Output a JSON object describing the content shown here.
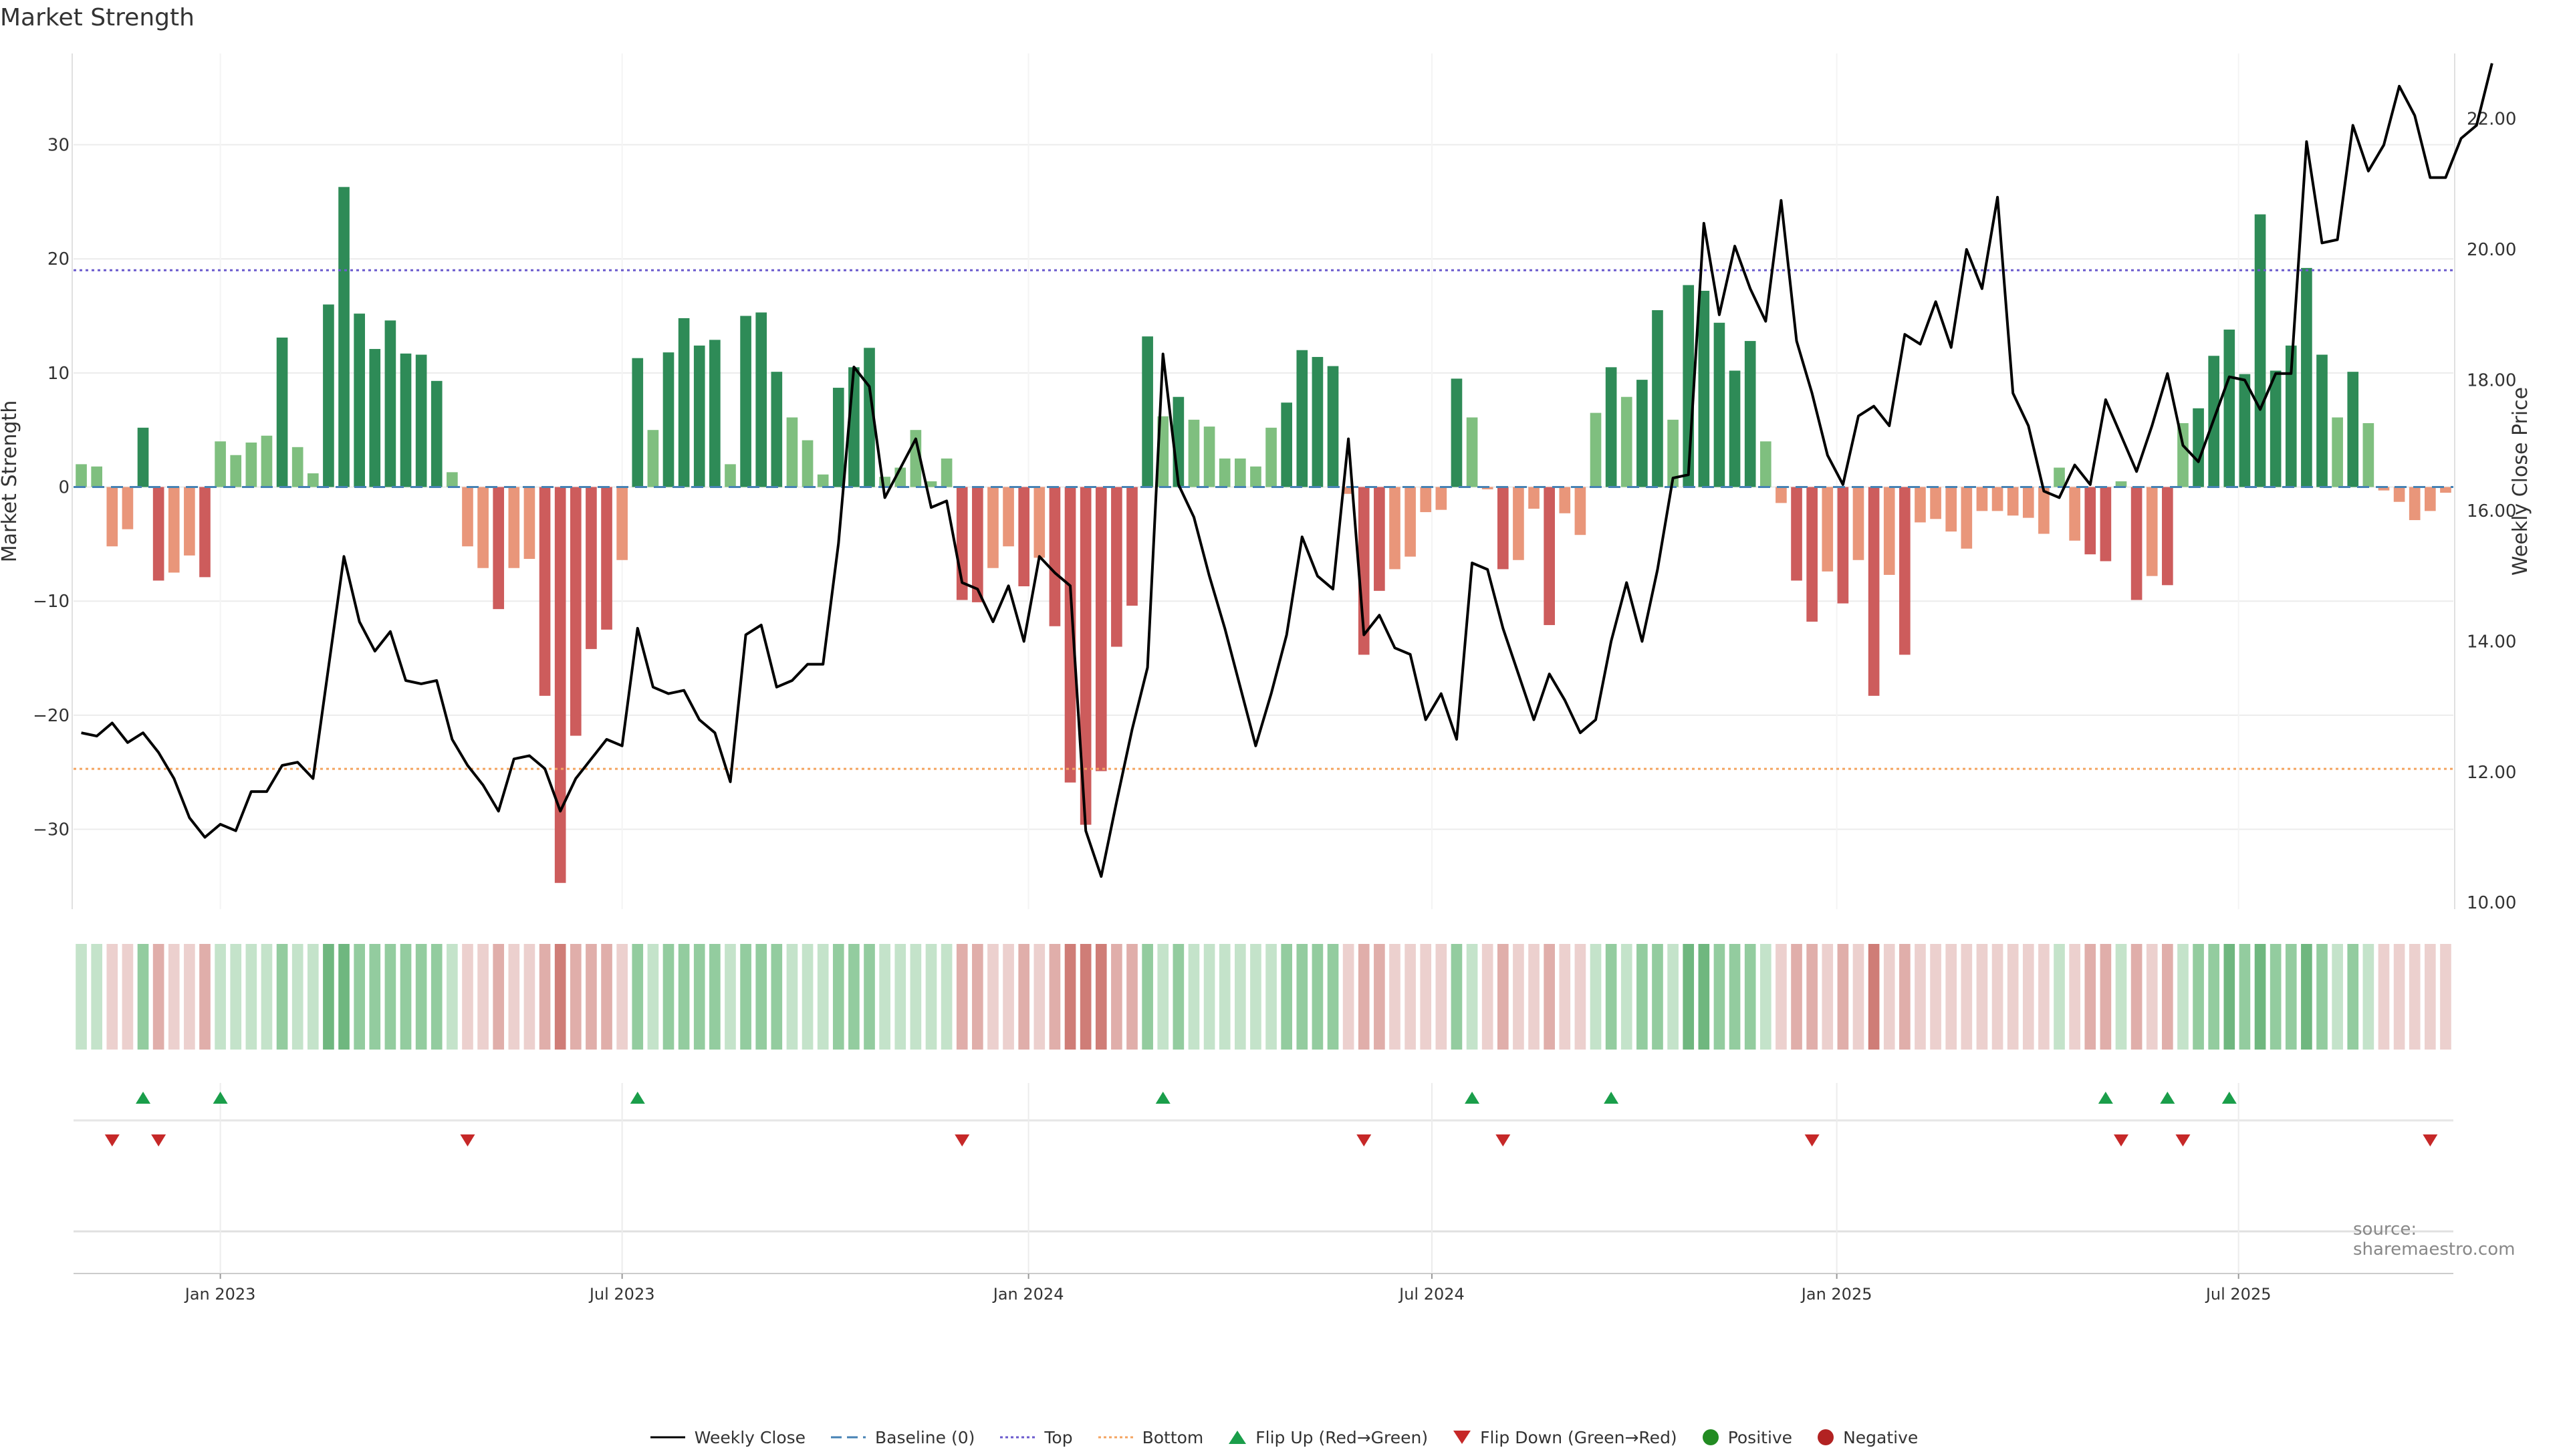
{
  "page": {
    "title": "Market Strength",
    "source": "source: sharemaestro.com"
  },
  "colors": {
    "strong_green": "#2e8b57",
    "light_green": "#7fbf7f",
    "strong_red": "#cd5c5c",
    "light_red": "#e9967a",
    "baseline": "#4682b4",
    "top_line": "#6a5acd",
    "bottom_line": "#f4a460",
    "price_line": "#000000",
    "flip_up": "#1a9e4a",
    "flip_down": "#c62828",
    "positive": "#228b22",
    "negative": "#b22222"
  },
  "legend": [
    {
      "key": "weekly_close",
      "label": "Weekly Close"
    },
    {
      "key": "baseline",
      "label": "Baseline (0)"
    },
    {
      "key": "top",
      "label": "Top"
    },
    {
      "key": "bottom",
      "label": "Bottom"
    },
    {
      "key": "flip_up",
      "label": "Flip Up (Red→Green)"
    },
    {
      "key": "flip_down",
      "label": "Flip Down (Green→Red)"
    },
    {
      "key": "positive",
      "label": "Positive"
    },
    {
      "key": "negative",
      "label": "Negative"
    }
  ],
  "chart_data": {
    "type": "bar",
    "title": "Market Strength",
    "ylabel": "Market Strength",
    "y2label": "Weekly Close Price",
    "ylim": [
      -37,
      38
    ],
    "y2lim": [
      9.9,
      23.0
    ],
    "yticks": [
      -30,
      -20,
      -10,
      0,
      10,
      20,
      30
    ],
    "y2ticks": [
      "10.00",
      "12.00",
      "14.00",
      "16.00",
      "18.00",
      "20.00",
      "22.00"
    ],
    "xtick_labels": [
      "Jan 2023",
      "Jul 2023",
      "Jan 2024",
      "Jul 2024",
      "Jan 2025",
      "Jul 2025"
    ],
    "xtick_weeks": [
      9,
      35,
      61.3,
      87.4,
      113.6,
      139.6
    ],
    "top_level": 19,
    "bottom_level": -24.7,
    "baseline": 0,
    "strength": [
      2,
      1.8,
      -5.2,
      -3.7,
      5.2,
      -8.2,
      -7.5,
      -6,
      -7.9,
      4,
      2.8,
      3.9,
      4.5,
      13.1,
      3.5,
      1.2,
      16,
      26.3,
      15.2,
      12.1,
      14.6,
      11.7,
      11.6,
      9.3,
      1.3,
      -5.2,
      -7.1,
      -10.7,
      -7.1,
      -6.3,
      -18.3,
      -34.7,
      -21.8,
      -14.2,
      -12.5,
      -6.4,
      11.3,
      5,
      11.8,
      14.8,
      12.4,
      12.9,
      2,
      15,
      15.3,
      10.1,
      6.1,
      4.1,
      1.1,
      8.7,
      10.5,
      12.2,
      0.9,
      1.7,
      5,
      0.5,
      2.5,
      -9.9,
      -10.1,
      -7.1,
      -5.2,
      -8.7,
      -6.2,
      -12.2,
      -25.9,
      -29.6,
      -24.9,
      -14,
      -10.4,
      13.2,
      6.2,
      7.9,
      5.9,
      5.3,
      2.5,
      2.5,
      1.8,
      5.2,
      7.4,
      12,
      11.4,
      10.6,
      -0.6,
      -14.7,
      -9.1,
      -7.2,
      -6.1,
      -2.2,
      -2,
      9.5,
      6.1,
      -0.2,
      -7.2,
      -6.4,
      -1.9,
      -12.1,
      -2.3,
      -4.2,
      6.5,
      10.5,
      7.9,
      9.4,
      15.5,
      5.9,
      17.7,
      17.2,
      14.4,
      10.2,
      12.8,
      4,
      -1.4,
      -8.2,
      -11.8,
      -7.4,
      -10.2,
      -6.4,
      -18.3,
      -7.7,
      -14.7,
      -3.1,
      -2.8,
      -3.9,
      -5.4,
      -2.1,
      -2.1,
      -2.5,
      -2.7,
      -4.1,
      1.7,
      -4.7,
      -5.9,
      -6.5,
      0.5,
      -9.9,
      -7.8,
      -8.6,
      5.6,
      6.9,
      11.5,
      13.8,
      9.9,
      23.9,
      10.2,
      12.4,
      19.2,
      11.6,
      6.1,
      10.1,
      5.6,
      -0.3,
      -1.3,
      -2.9,
      -2.1,
      -0.5
    ],
    "weekly_close": [
      12.6,
      12.55,
      12.75,
      12.45,
      12.6,
      12.3,
      11.9,
      11.3,
      11.0,
      11.2,
      11.1,
      11.7,
      11.7,
      12.1,
      12.15,
      11.9,
      13.6,
      15.3,
      14.3,
      13.85,
      14.15,
      13.4,
      13.35,
      13.4,
      12.5,
      12.1,
      11.8,
      11.4,
      12.2,
      12.25,
      12.05,
      11.4,
      11.9,
      12.2,
      12.5,
      12.4,
      14.2,
      13.3,
      13.2,
      13.25,
      12.8,
      12.6,
      11.85,
      14.1,
      14.25,
      13.3,
      13.4,
      13.65,
      13.65,
      15.5,
      18.2,
      17.9,
      16.2,
      16.65,
      17.1,
      16.05,
      16.15,
      14.9,
      14.8,
      14.3,
      14.85,
      14.0,
      15.3,
      15.05,
      14.85,
      11.1,
      10.4,
      11.55,
      12.65,
      13.6,
      18.4,
      16.4,
      15.9,
      15.0,
      14.2,
      13.3,
      12.4,
      13.2,
      14.1,
      15.6,
      15.0,
      14.8,
      17.1,
      14.1,
      14.4,
      13.9,
      13.8,
      12.8,
      13.2,
      12.5,
      15.2,
      15.1,
      14.2,
      13.5,
      12.8,
      13.5,
      13.1,
      12.6,
      12.8,
      14.0,
      14.9,
      14.0,
      15.1,
      16.5,
      16.55,
      20.4,
      19.0,
      20.05,
      19.4,
      18.9,
      20.75,
      18.6,
      17.8,
      16.85,
      16.4,
      17.45,
      17.6,
      17.3,
      18.7,
      18.55,
      19.2,
      18.5,
      20.0,
      19.4,
      20.8,
      17.8,
      17.3,
      16.3,
      16.2,
      16.7,
      16.4,
      17.7,
      17.15,
      16.6,
      17.3,
      18.1,
      17.0,
      16.75,
      17.4,
      18.05,
      18.0,
      17.55,
      18.1,
      18.1,
      21.65,
      20.1,
      20.15,
      21.9,
      21.2,
      21.6,
      22.5,
      22.05,
      21.1,
      21.1,
      21.7,
      21.9,
      22.85
    ],
    "state_strip": [
      1,
      1,
      -1,
      -1,
      2,
      -2,
      -1,
      -1,
      -2,
      1,
      1,
      1,
      1,
      2,
      1,
      1,
      3,
      3,
      2,
      2,
      2,
      2,
      2,
      2,
      1,
      -1,
      -1,
      -2,
      -1,
      -1,
      -2,
      -3,
      -2,
      -2,
      -2,
      -1,
      2,
      1,
      2,
      2,
      2,
      2,
      1,
      2,
      2,
      2,
      1,
      1,
      1,
      2,
      2,
      2,
      1,
      1,
      1,
      1,
      1,
      -2,
      -2,
      -1,
      -1,
      -2,
      -1,
      -2,
      -3,
      -3,
      -3,
      -2,
      -2,
      2,
      1,
      2,
      1,
      1,
      1,
      1,
      1,
      1,
      2,
      2,
      2,
      2,
      -1,
      -2,
      -2,
      -1,
      -1,
      -1,
      -1,
      2,
      1,
      -1,
      -2,
      -1,
      -1,
      -2,
      -1,
      -1,
      1,
      2,
      1,
      2,
      2,
      1,
      3,
      3,
      2,
      2,
      2,
      1,
      -1,
      -2,
      -2,
      -1,
      -2,
      -1,
      -3,
      -1,
      -2,
      -1,
      -1,
      -1,
      -1,
      -1,
      -1,
      -1,
      -1,
      -1,
      1,
      -1,
      -2,
      -2,
      1,
      -2,
      -1,
      -2,
      1,
      2,
      2,
      3,
      2,
      3,
      2,
      2,
      3,
      2,
      1,
      2,
      1,
      -1,
      -1,
      -1,
      -1,
      -1
    ],
    "flip_up_weeks": [
      4,
      9,
      36,
      70,
      90,
      99,
      131,
      135,
      139
    ],
    "flip_down_weeks": [
      2,
      5,
      25,
      57,
      83,
      92,
      112,
      132,
      136,
      152
    ]
  }
}
